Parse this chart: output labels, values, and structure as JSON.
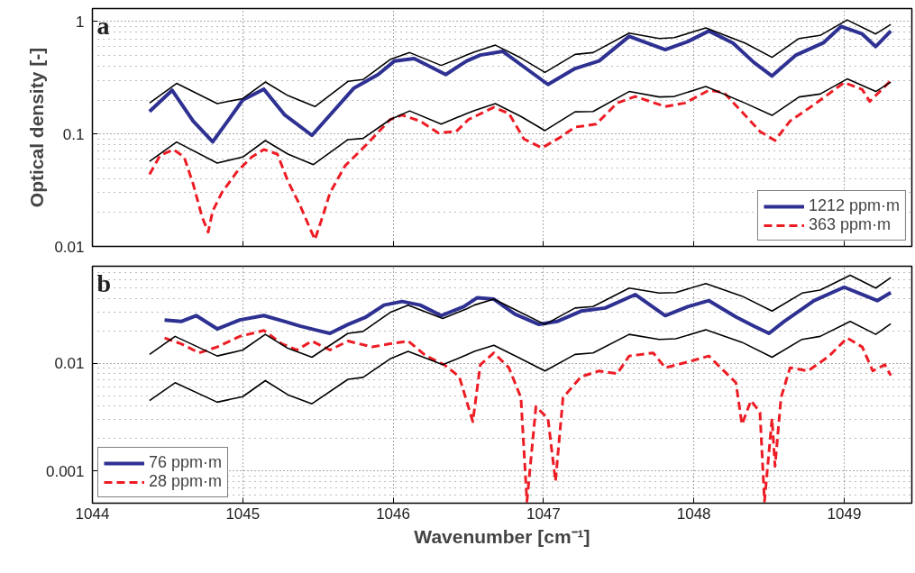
{
  "chart_data": [
    {
      "type": "line",
      "annotations": [
        "a"
      ],
      "ylabel": "Optical density [-]",
      "log": "y",
      "grid": true,
      "legend": "bottom right",
      "tick_labels": "y",
      "xlim": [
        1044,
        1049.45
      ],
      "xticks": [
        1044,
        1045,
        1046,
        1047,
        1048,
        1049
      ],
      "ylim": [
        0.01,
        1.3
      ],
      "yticks": [
        0.01,
        0.1,
        1
      ],
      "series": [
        {
          "name": "1212 ppm·m",
          "color": "#2e3192",
          "line_style": "solid",
          "x": [
            1044.38,
            1044.53,
            1044.67,
            1044.8,
            1044.9,
            1045.0,
            1045.14,
            1045.28,
            1045.46,
            1045.58,
            1045.74,
            1045.9,
            1046.01,
            1046.14,
            1046.35,
            1046.49,
            1046.58,
            1046.73,
            1046.87,
            1047.03,
            1047.21,
            1047.37,
            1047.57,
            1047.81,
            1047.96,
            1048.1,
            1048.26,
            1048.4,
            1048.52,
            1048.68,
            1048.86,
            1048.98,
            1049.12,
            1049.21,
            1049.31
          ],
          "values": [
            0.158,
            0.244,
            0.13,
            0.085,
            0.13,
            0.2,
            0.25,
            0.147,
            0.097,
            0.147,
            0.256,
            0.337,
            0.445,
            0.467,
            0.337,
            0.445,
            0.502,
            0.541,
            0.394,
            0.275,
            0.381,
            0.445,
            0.736,
            0.561,
            0.662,
            0.822,
            0.643,
            0.431,
            0.327,
            0.502,
            0.643,
            0.902,
            0.773,
            0.597,
            0.822
          ]
        },
        {
          "name": "363 ppm·m",
          "color": "#ed1c24",
          "line_style": "dashed",
          "x": [
            1044.38,
            1044.45,
            1044.54,
            1044.61,
            1044.67,
            1044.73,
            1044.77,
            1044.8,
            1044.86,
            1044.96,
            1045.06,
            1045.14,
            1045.23,
            1045.3,
            1045.38,
            1045.44,
            1045.48,
            1045.53,
            1045.58,
            1045.68,
            1045.82,
            1045.98,
            1046.06,
            1046.18,
            1046.3,
            1046.42,
            1046.5,
            1046.67,
            1046.77,
            1046.87,
            1046.99,
            1047.11,
            1047.21,
            1047.35,
            1047.49,
            1047.61,
            1047.81,
            1047.94,
            1048.1,
            1048.2,
            1048.34,
            1048.44,
            1048.54,
            1048.64,
            1048.8,
            1049.0,
            1049.12,
            1049.17,
            1049.31
          ],
          "values": [
            0.0437,
            0.0643,
            0.0726,
            0.0623,
            0.0359,
            0.0182,
            0.0134,
            0.0206,
            0.0299,
            0.0458,
            0.0623,
            0.0726,
            0.0662,
            0.0381,
            0.0233,
            0.0152,
            0.0115,
            0.0182,
            0.0299,
            0.0519,
            0.0796,
            0.134,
            0.147,
            0.13,
            0.102,
            0.105,
            0.134,
            0.172,
            0.152,
            0.0901,
            0.075,
            0.0929,
            0.115,
            0.122,
            0.188,
            0.215,
            0.175,
            0.188,
            0.244,
            0.233,
            0.147,
            0.105,
            0.0873,
            0.13,
            0.182,
            0.286,
            0.248,
            0.194,
            0.298
          ]
        },
        {
          "color": "#000000",
          "line_style": "solid",
          "x": [
            1044.38,
            1044.56,
            1044.83,
            1045.0,
            1045.15,
            1045.3,
            1045.48,
            1045.7,
            1045.8,
            1045.98,
            1046.11,
            1046.32,
            1046.49,
            1046.54,
            1046.68,
            1046.85,
            1047.01,
            1047.21,
            1047.33,
            1047.57,
            1047.77,
            1047.87,
            1048.08,
            1048.34,
            1048.52,
            1048.7,
            1048.84,
            1049.02,
            1049.21,
            1049.31
          ],
          "values": [
            0.188,
            0.281,
            0.186,
            0.206,
            0.289,
            0.219,
            0.175,
            0.293,
            0.304,
            0.458,
            0.528,
            0.406,
            0.502,
            0.534,
            0.615,
            0.473,
            0.352,
            0.509,
            0.528,
            0.787,
            0.705,
            0.718,
            0.873,
            0.643,
            0.479,
            0.705,
            0.75,
            1.03,
            0.773,
            0.94
          ]
        },
        {
          "color": "#000000",
          "line_style": "solid",
          "x": [
            1044.38,
            1044.56,
            1044.83,
            1045.0,
            1045.15,
            1045.3,
            1045.47,
            1045.7,
            1045.8,
            1045.98,
            1046.11,
            1046.32,
            1046.49,
            1046.54,
            1046.68,
            1046.85,
            1047.01,
            1047.21,
            1047.33,
            1047.57,
            1047.77,
            1047.87,
            1048.08,
            1048.34,
            1048.52,
            1048.7,
            1048.84,
            1049.02,
            1049.21,
            1049.31
          ],
          "values": [
            0.0569,
            0.0847,
            0.0551,
            0.0623,
            0.0873,
            0.0662,
            0.0534,
            0.089,
            0.0912,
            0.134,
            0.16,
            0.122,
            0.152,
            0.161,
            0.186,
            0.143,
            0.107,
            0.157,
            0.158,
            0.238,
            0.213,
            0.215,
            0.264,
            0.188,
            0.146,
            0.213,
            0.226,
            0.308,
            0.238,
            0.289
          ]
        }
      ]
    },
    {
      "type": "line",
      "annotations": [
        "b"
      ],
      "xlabel": "Wavenumber [cm⁻¹]",
      "log": "y",
      "grid": true,
      "legend": "bottom left",
      "xlim": [
        1044,
        1049.45
      ],
      "xticks": [
        1044,
        1045,
        1046,
        1047,
        1048,
        1049
      ],
      "ylim": [
        0.0005,
        0.08
      ],
      "yticks": [
        0.001,
        0.01
      ],
      "series": [
        {
          "name": "76 ppm·m",
          "color": "#2e3192",
          "line_style": "solid",
          "x": [
            1044.48,
            1044.59,
            1044.69,
            1044.83,
            1044.98,
            1045.14,
            1045.28,
            1045.38,
            1045.5,
            1045.58,
            1045.7,
            1045.82,
            1045.94,
            1046.06,
            1046.18,
            1046.32,
            1046.47,
            1046.56,
            1046.67,
            1046.81,
            1046.97,
            1047.09,
            1047.25,
            1047.41,
            1047.61,
            1047.81,
            1047.96,
            1048.1,
            1048.28,
            1048.4,
            1048.5,
            1048.6,
            1048.8,
            1049.0,
            1049.12,
            1049.22,
            1049.31
          ],
          "values": [
            0.0253,
            0.0245,
            0.0278,
            0.0209,
            0.0253,
            0.0278,
            0.0245,
            0.0222,
            0.0202,
            0.019,
            0.023,
            0.027,
            0.0348,
            0.0376,
            0.0348,
            0.0278,
            0.0337,
            0.0408,
            0.0395,
            0.0287,
            0.023,
            0.0245,
            0.0306,
            0.0327,
            0.0436,
            0.0278,
            0.0337,
            0.0383,
            0.027,
            0.0222,
            0.019,
            0.0245,
            0.0383,
            0.0511,
            0.0436,
            0.0383,
            0.0455
          ]
        },
        {
          "name": "28 ppm·m",
          "color": "#ed1c24",
          "line_style": "dashed",
          "x": [
            1044.48,
            1044.59,
            1044.71,
            1044.83,
            1044.98,
            1045.14,
            1045.26,
            1045.36,
            1045.46,
            1045.58,
            1045.7,
            1045.86,
            1045.98,
            1046.1,
            1046.22,
            1046.34,
            1046.44,
            1046.53,
            1046.58,
            1046.67,
            1046.77,
            1046.85,
            1046.89,
            1046.95,
            1047.03,
            1047.08,
            1047.13,
            1047.25,
            1047.37,
            1047.49,
            1047.57,
            1047.73,
            1047.81,
            1047.96,
            1048.1,
            1048.2,
            1048.28,
            1048.32,
            1048.38,
            1048.44,
            1048.47,
            1048.52,
            1048.54,
            1048.58,
            1048.64,
            1048.76,
            1048.9,
            1049.02,
            1049.12,
            1049.19,
            1049.27,
            1049.31
          ],
          "values": [
            0.0172,
            0.0152,
            0.0125,
            0.0142,
            0.0178,
            0.0202,
            0.0152,
            0.0133,
            0.0161,
            0.0133,
            0.0161,
            0.0142,
            0.0152,
            0.0161,
            0.0117,
            0.0097,
            0.0075,
            0.00287,
            0.0097,
            0.0125,
            0.0091,
            0.0048,
            0.00052,
            0.00396,
            0.00306,
            0.0008,
            0.0048,
            0.0075,
            0.0085,
            0.008,
            0.0117,
            0.0125,
            0.0091,
            0.0103,
            0.0117,
            0.0085,
            0.0066,
            0.0027,
            0.0045,
            0.0035,
            0.00052,
            0.00306,
            0.0011,
            0.0048,
            0.0091,
            0.0085,
            0.0117,
            0.0172,
            0.0142,
            0.0085,
            0.0097,
            0.0077
          ]
        },
        {
          "color": "#000000",
          "line_style": "solid",
          "x": [
            1044.38,
            1044.55,
            1044.83,
            1045.0,
            1045.15,
            1045.3,
            1045.46,
            1045.7,
            1045.8,
            1045.98,
            1046.1,
            1046.33,
            1046.49,
            1046.54,
            1046.67,
            1046.83,
            1047.01,
            1047.21,
            1047.33,
            1047.57,
            1047.77,
            1047.88,
            1048.08,
            1048.32,
            1048.52,
            1048.72,
            1048.84,
            1049.04,
            1049.21,
            1049.31
          ],
          "values": [
            0.0121,
            0.0178,
            0.0117,
            0.0133,
            0.0186,
            0.0138,
            0.0114,
            0.019,
            0.0198,
            0.0297,
            0.0348,
            0.0261,
            0.0322,
            0.0348,
            0.0395,
            0.0306,
            0.023,
            0.0327,
            0.0337,
            0.0501,
            0.045,
            0.0455,
            0.0552,
            0.0422,
            0.0306,
            0.045,
            0.048,
            0.0659,
            0.0501,
            0.0627
          ]
        },
        {
          "color": "#000000",
          "line_style": "solid",
          "x": [
            1044.38,
            1044.55,
            1044.83,
            1045.0,
            1045.15,
            1045.3,
            1045.46,
            1045.7,
            1045.8,
            1045.98,
            1046.1,
            1046.33,
            1046.49,
            1046.54,
            1046.67,
            1046.83,
            1047.01,
            1047.21,
            1047.33,
            1047.57,
            1047.77,
            1047.88,
            1048.08,
            1048.32,
            1048.52,
            1048.72,
            1048.84,
            1049.04,
            1049.21,
            1049.31
          ],
          "values": [
            0.0045,
            0.0066,
            0.00435,
            0.0049,
            0.0069,
            0.0051,
            0.0042,
            0.0071,
            0.0074,
            0.011,
            0.0129,
            0.0097,
            0.012,
            0.0129,
            0.0147,
            0.0114,
            0.0085,
            0.0121,
            0.0125,
            0.0186,
            0.0167,
            0.0169,
            0.0205,
            0.0157,
            0.0114,
            0.0167,
            0.0178,
            0.0245,
            0.0186,
            0.0233
          ]
        }
      ]
    }
  ]
}
